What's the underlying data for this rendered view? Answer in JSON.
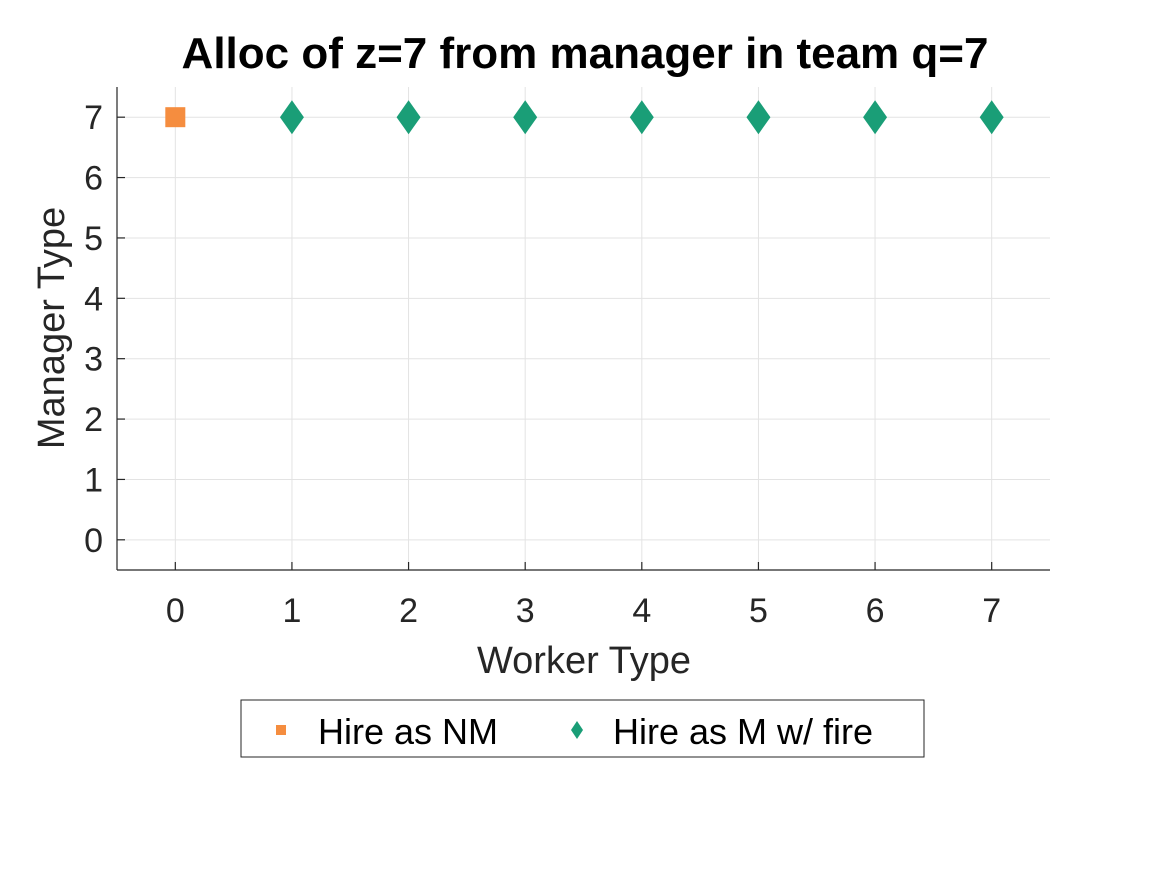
{
  "chart_data": {
    "type": "scatter",
    "title": "Alloc of z=7 from manager in team q=7",
    "xlabel": "Worker Type",
    "ylabel": "Manager Type",
    "xlim": [
      -0.5,
      7.5
    ],
    "ylim": [
      -0.5,
      7.5
    ],
    "xticks": [
      "0",
      "1",
      "2",
      "3",
      "4",
      "5",
      "6",
      "7"
    ],
    "yticks": [
      "0",
      "1",
      "2",
      "3",
      "4",
      "5",
      "6",
      "7"
    ],
    "grid": true,
    "legend_position": "bottom-outside",
    "series": [
      {
        "name": "Hire as NM",
        "marker": "square",
        "color": "#F58D3F",
        "points": [
          {
            "x": 0,
            "y": 7
          }
        ]
      },
      {
        "name": "Hire as M w/ fire",
        "marker": "diamond",
        "color": "#1A9E77",
        "points": [
          {
            "x": 1,
            "y": 7
          },
          {
            "x": 2,
            "y": 7
          },
          {
            "x": 3,
            "y": 7
          },
          {
            "x": 4,
            "y": 7
          },
          {
            "x": 5,
            "y": 7
          },
          {
            "x": 6,
            "y": 7
          },
          {
            "x": 7,
            "y": 7
          }
        ]
      }
    ]
  }
}
